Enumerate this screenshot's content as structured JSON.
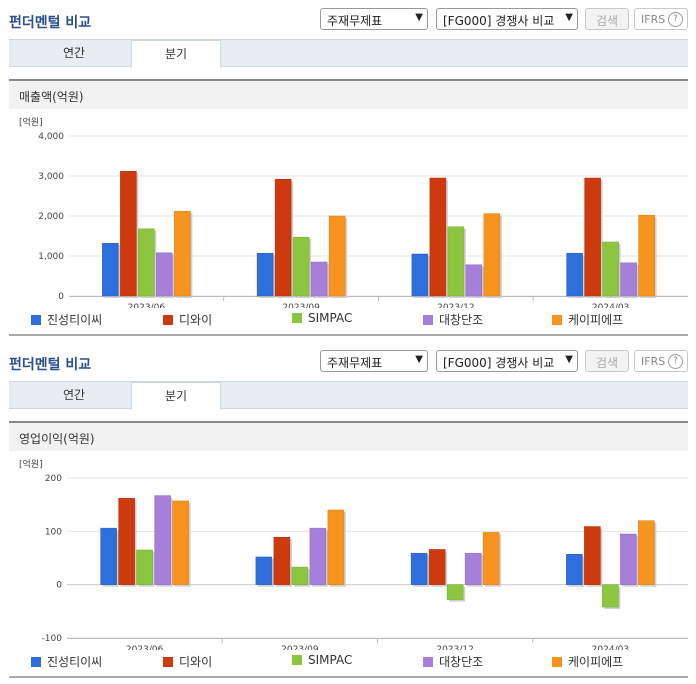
{
  "panels": [
    {
      "title": "펀더멘털 비교",
      "select1": "주재무제표",
      "select2": "[FG000] 경쟁사 비교",
      "search_label": "검색",
      "ifrs_label": "IFRS",
      "tabs": [
        "연간",
        "분기"
      ],
      "active_tab": 1,
      "section_title": "매출액(억원)"
    },
    {
      "title": "펀더멘털 비교",
      "select1": "주재무제표",
      "select2": "[FG000] 경쟁사 비교",
      "search_label": "검색",
      "ifrs_label": "IFRS",
      "tabs": [
        "연간",
        "분기"
      ],
      "active_tab": 1,
      "section_title": "영업이익(억원)"
    }
  ],
  "colors": [
    "#2e6fdc",
    "#cc3a0e",
    "#8cc63e",
    "#a67fdb",
    "#f7941d"
  ],
  "chart_data": [
    {
      "type": "bar",
      "unit": "[억원]",
      "categories": [
        "2023/06",
        "2023/09",
        "2023/12",
        "2024/03"
      ],
      "ylim": [
        0,
        4000
      ],
      "yticks": [
        0,
        1000,
        2000,
        3000,
        4000
      ],
      "ytick_labels": [
        "0",
        "1,000",
        "2,000",
        "3,000",
        "4,000"
      ],
      "grid": true,
      "legend": "bottom",
      "series": [
        {
          "name": "진성티이씨",
          "values": [
            1320,
            1070,
            1050,
            1070
          ]
        },
        {
          "name": "디와이",
          "values": [
            3120,
            2920,
            2950,
            2950
          ]
        },
        {
          "name": "SIMPAC",
          "values": [
            1680,
            1470,
            1730,
            1350
          ]
        },
        {
          "name": "대창단조",
          "values": [
            1080,
            850,
            780,
            830
          ]
        },
        {
          "name": "케이피에프",
          "values": [
            2120,
            2000,
            2060,
            2020
          ]
        }
      ]
    },
    {
      "type": "bar",
      "unit": "[억원]",
      "categories": [
        "2023/06",
        "2023/09",
        "2023/12",
        "2024/03"
      ],
      "ylim": [
        -100,
        200
      ],
      "yticks": [
        -100,
        0,
        100,
        200
      ],
      "ytick_labels": [
        "-100",
        "0",
        "100",
        "200"
      ],
      "grid": true,
      "legend": "bottom",
      "series": [
        {
          "name": "진성티이씨",
          "values": [
            106,
            52,
            59,
            57
          ]
        },
        {
          "name": "디와이",
          "values": [
            162,
            89,
            66,
            109
          ]
        },
        {
          "name": "SIMPAC",
          "values": [
            65,
            33,
            -28,
            -42
          ]
        },
        {
          "name": "대창단조",
          "values": [
            167,
            106,
            59,
            95
          ]
        },
        {
          "name": "케이피에프",
          "values": [
            157,
            140,
            98,
            120
          ]
        }
      ]
    }
  ]
}
